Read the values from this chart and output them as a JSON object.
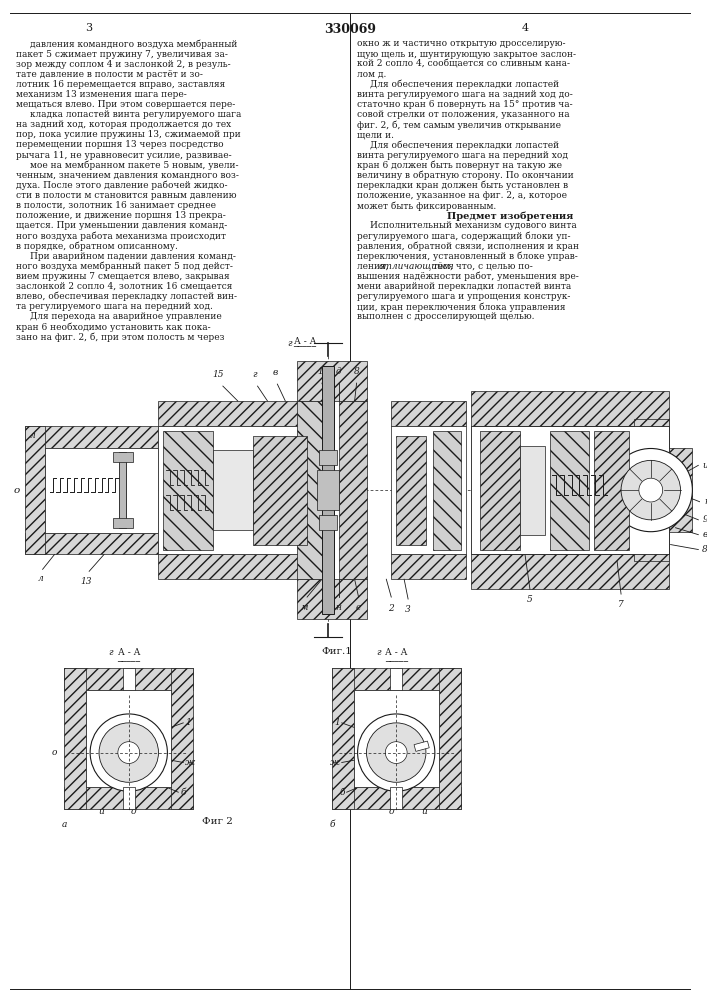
{
  "patent_number": "330069",
  "page_left": "3",
  "page_right": "4",
  "background_color": "#ffffff",
  "text_color": "#1a1a1a",
  "line_color": "#1a1a1a",
  "col1_text": [
    "давления командного воздуха мембранный",
    "пакет 5 сжимает пружину 7, увеличивая за-",
    "зор между соплом 4 и заслонкой 2, в резуль-",
    "тате давление в полости м растёт и зо-",
    "лотник 16 перемещается вправо, заставляя",
    "механизм 13 изменения шага пере-",
    "мещаться влево. При этом совершается пере-",
    "кладка лопастей винта регулируемого шага",
    "на задний ход, которая продолжается до тех",
    "пор, пока усилие пружины 13, сжимаемой при",
    "перемещении поршня 13 через посредство",
    "рычага 11, не уравновесит усилие, развивае-",
    "мое на мембранном пакете 5 новым, увели-",
    "ченным, значением давления командного воз-",
    "духа. После этого давление рабочей жидко-",
    "сти в полости м становится равным давлению",
    "в полости, золотник 16 занимает среднее",
    "положение, и движение поршня 13 прекра-",
    "щается. При уменьшении давления команд-",
    "ного воздуха работа механизма происходит",
    "в порядке, обратном описанному.",
    "При аварийном падении давления команд-",
    "ного воздуха мембранный пакет 5 под дейст-",
    "вием пружины 7 смещается влево, закрывая",
    "заслонкой 2 сопло 4, золотник 16 смещается",
    "влево, обеспечивая перекладку лопастей вин-",
    "та регулируемого шага на передний ход.",
    "Для перехода на аварийное управление",
    "кран 6 необходимо установить как пока-",
    "зано на фиг. 2, б, при этом полость м через"
  ],
  "col2_text": [
    "окно ж и частично открытую дросселирую-",
    "щую щель и, шунтирующую закрытое заслон-",
    "кой 2 сопло 4, сообщается со сливным кана-",
    "лом д.",
    "Для обеспечения перекладки лопастей",
    "винта регулируемого шага на задний ход до-",
    "статочно кран 6 повернуть на 15° против ча-",
    "совой стрелки от положения, указанного на",
    "фиг. 2, б, тем самым увеличив открывание",
    "щели и.",
    "Для обеспечения перекладки лопастей",
    "винта регулируемого шага на передний ход",
    "кран 6 должен быть повернут на такую же",
    "величину в обратную сторону. По окончании",
    "перекладки кран должен быть установлен в",
    "положение, указанное на фиг. 2, а, которое",
    "может быть фиксированным.",
    "Предмет изобретения",
    "Исполнительный механизм судового винта",
    "регулируемого шага, содержащий блоки уп-",
    "равления, обратной связи, исполнения и кран",
    "переключения, установленный в блоке управ-",
    "ления, отличающийся тем, что, с целью по-",
    "вышения надёжности работ, уменьшения вре-",
    "мени аварийной перекладки лопастей винта",
    "регулируемого шага и упрощения конструк-",
    "ции, кран переключения блока управления",
    "выполнен с дросселирующей щелью."
  ],
  "fig1_label": "Фиг.1",
  "fig2_label": "Фиг 2",
  "font_size_body": 6.5,
  "font_size_patent": 9,
  "font_size_page": 8
}
